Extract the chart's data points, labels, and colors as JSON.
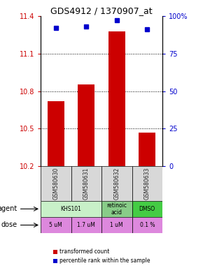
{
  "title": "GDS4912 / 1370907_at",
  "samples": [
    "GSM580630",
    "GSM580631",
    "GSM580632",
    "GSM580633"
  ],
  "bar_values": [
    10.72,
    10.855,
    11.28,
    10.47
  ],
  "percentile_values": [
    92,
    93,
    97,
    91
  ],
  "ylim": [
    10.2,
    11.4
  ],
  "yticks": [
    10.2,
    10.5,
    10.8,
    11.1,
    11.4
  ],
  "ytick_labels": [
    "10.2",
    "10.5",
    "10.8",
    "11.1",
    "11.4"
  ],
  "y2ticks": [
    0,
    25,
    50,
    75,
    100
  ],
  "y2tick_labels": [
    "0",
    "25",
    "50",
    "75",
    "100%"
  ],
  "bar_color": "#cc0000",
  "dot_color": "#0000cc",
  "bar_bottom": 10.2,
  "agent_row": [
    {
      "label": "KHS101",
      "span": [
        0,
        2
      ],
      "color": "#c8f0c8"
    },
    {
      "label": "retinoic\nacid",
      "span": [
        2,
        3
      ],
      "color": "#88cc88"
    },
    {
      "label": "DMSO",
      "span": [
        3,
        4
      ],
      "color": "#44cc44"
    }
  ],
  "dose_row": [
    {
      "label": "5 uM",
      "span": [
        0,
        1
      ],
      "color": "#dd88dd"
    },
    {
      "label": "1.7 uM",
      "span": [
        1,
        2
      ],
      "color": "#dd88dd"
    },
    {
      "label": "1 uM",
      "span": [
        2,
        3
      ],
      "color": "#dd88dd"
    },
    {
      "label": "0.1 %",
      "span": [
        3,
        4
      ],
      "color": "#dd88dd"
    }
  ],
  "legend_items": [
    {
      "color": "#cc0000",
      "label": "transformed count"
    },
    {
      "color": "#0000cc",
      "label": "percentile rank within the sample"
    }
  ],
  "axis_label_color_left": "#cc0000",
  "axis_label_color_right": "#0000cc",
  "agent_label": "agent",
  "dose_label": "dose",
  "gridline_yticks": [
    10.5,
    10.8,
    11.1
  ]
}
